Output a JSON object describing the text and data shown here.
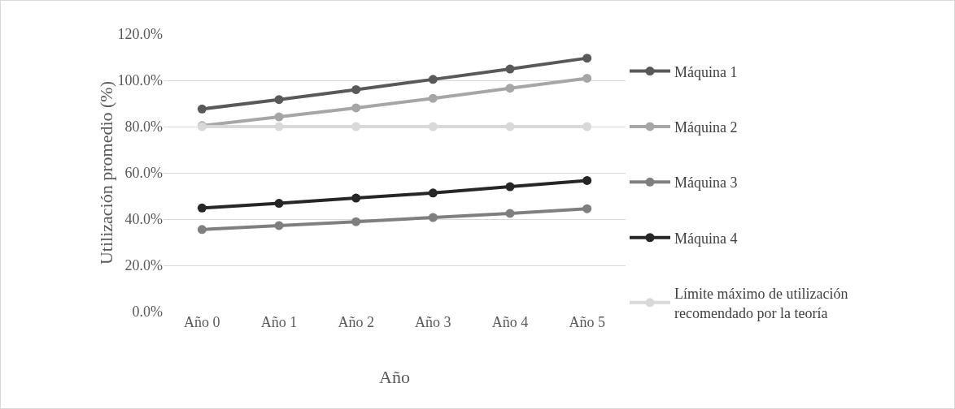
{
  "chart_data": {
    "type": "line",
    "xlabel": "Año",
    "ylabel": "Utilización promedio (%)",
    "categories": [
      "Año 0",
      "Año 1",
      "Año 2",
      "Año 3",
      "Año 4",
      "Año 5"
    ],
    "series": [
      {
        "name": "Máquina 1",
        "color": "#595959",
        "values": [
          87.6,
          91.7,
          96.0,
          100.4,
          104.9,
          109.6
        ]
      },
      {
        "name": "Máquina 2",
        "color": "#a6a6a6",
        "values": [
          80.4,
          84.2,
          88.1,
          92.2,
          96.6,
          100.9
        ]
      },
      {
        "name": "Máquina 3",
        "color": "#7f7f7f",
        "values": [
          35.5,
          37.2,
          38.9,
          40.7,
          42.5,
          44.5
        ]
      },
      {
        "name": "Máquina 4",
        "color": "#262626",
        "values": [
          44.8,
          46.8,
          49.1,
          51.3,
          54.0,
          56.7
        ]
      },
      {
        "name": "Límite máximo de utilización recomendado por la teoría",
        "color": "#d9d9d9",
        "values": [
          80,
          80,
          80,
          80,
          80,
          80
        ]
      }
    ],
    "ylim": [
      0,
      120
    ],
    "yticks": [
      {
        "value": 0,
        "label": "0.0%"
      },
      {
        "value": 20,
        "label": "20.0%"
      },
      {
        "value": 40,
        "label": "40.0%"
      },
      {
        "value": 60,
        "label": "60.0%"
      },
      {
        "value": 80,
        "label": "80.0%"
      },
      {
        "value": 100,
        "label": "100.0%"
      },
      {
        "value": 120,
        "label": "120.0%"
      }
    ],
    "grid": "y",
    "legend": "right",
    "marker": "circle",
    "line_style": "solid"
  }
}
